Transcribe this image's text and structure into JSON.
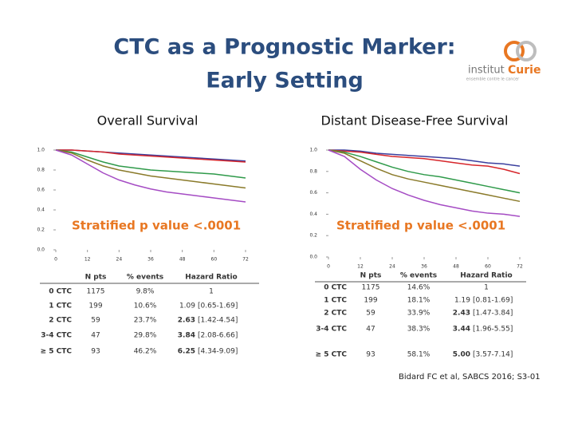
{
  "title": [
    "CTC as a Prognostic Marker:",
    "Early Setting"
  ],
  "logo": {
    "prefix": "institut",
    "name": "Curie",
    "tagline": "ensemble contre le cancer"
  },
  "chart_data": [
    {
      "type": "line",
      "title": "Overall Survival",
      "annotation": "Stratified p value <.0001",
      "x": [
        0,
        6,
        12,
        18,
        24,
        30,
        36,
        42,
        48,
        54,
        60,
        66,
        72
      ],
      "xlim": [
        0,
        72
      ],
      "xticks": [
        0,
        12,
        24,
        36,
        48,
        60,
        72
      ],
      "ylim": [
        0,
        1
      ],
      "yticks": [
        {
          "value": 0,
          "label": "0.0"
        },
        {
          "value": 0.2,
          "label": "0.2"
        },
        {
          "value": 0.4,
          "label": "0.4"
        },
        {
          "value": 0.6,
          "label": "0.6"
        },
        {
          "value": 0.8,
          "label": "0.8"
        },
        {
          "value": 1,
          "label": "1.0"
        }
      ],
      "series": [
        {
          "color": "#3b3f9e",
          "values": [
            1,
            1,
            0.99,
            0.98,
            0.97,
            0.96,
            0.95,
            0.94,
            0.93,
            0.92,
            0.91,
            0.9,
            0.89
          ]
        },
        {
          "color": "#d6262b",
          "values": [
            1,
            1,
            0.99,
            0.98,
            0.96,
            0.95,
            0.94,
            0.93,
            0.92,
            0.91,
            0.9,
            0.89,
            0.88
          ]
        },
        {
          "color": "#2f9a4a",
          "values": [
            1,
            0.98,
            0.93,
            0.88,
            0.84,
            0.82,
            0.8,
            0.79,
            0.78,
            0.77,
            0.76,
            0.74,
            0.72
          ]
        },
        {
          "color": "#8a7a2a",
          "values": [
            1,
            0.97,
            0.9,
            0.84,
            0.8,
            0.77,
            0.74,
            0.72,
            0.7,
            0.68,
            0.66,
            0.64,
            0.62
          ]
        },
        {
          "color": "#a54cc4",
          "values": [
            1,
            0.95,
            0.86,
            0.77,
            0.7,
            0.65,
            0.61,
            0.58,
            0.56,
            0.54,
            0.52,
            0.5,
            0.48
          ]
        }
      ]
    },
    {
      "type": "line",
      "title": "Distant Disease-Free Survival",
      "annotation": "Stratified p value <.0001",
      "x": [
        0,
        6,
        12,
        18,
        24,
        30,
        36,
        42,
        48,
        54,
        60,
        66,
        72
      ],
      "xlim": [
        0,
        72
      ],
      "xticks": [
        0,
        12,
        24,
        36,
        48,
        60,
        72
      ],
      "ylim": [
        0,
        1
      ],
      "yticks": [
        {
          "value": 0,
          "label": "0.0"
        },
        {
          "value": 0.2,
          "label": "0.2"
        },
        {
          "value": 0.4,
          "label": "0.4"
        },
        {
          "value": 0.6,
          "label": "0.6"
        },
        {
          "value": 0.8,
          "label": "0.8"
        },
        {
          "value": 1,
          "label": "1.0"
        }
      ],
      "series": [
        {
          "color": "#3b3f9e",
          "values": [
            1,
            1,
            0.99,
            0.97,
            0.96,
            0.95,
            0.94,
            0.93,
            0.92,
            0.9,
            0.88,
            0.87,
            0.85
          ]
        },
        {
          "color": "#d6262b",
          "values": [
            1,
            0.99,
            0.98,
            0.96,
            0.94,
            0.93,
            0.92,
            0.9,
            0.88,
            0.86,
            0.85,
            0.82,
            0.78
          ]
        },
        {
          "color": "#2f9a4a",
          "values": [
            1,
            0.98,
            0.94,
            0.89,
            0.84,
            0.8,
            0.77,
            0.75,
            0.72,
            0.69,
            0.66,
            0.63,
            0.6
          ]
        },
        {
          "color": "#8a7a2a",
          "values": [
            1,
            0.97,
            0.9,
            0.83,
            0.77,
            0.73,
            0.7,
            0.67,
            0.64,
            0.61,
            0.58,
            0.55,
            0.52
          ]
        },
        {
          "color": "#a54cc4",
          "values": [
            1,
            0.94,
            0.82,
            0.72,
            0.64,
            0.58,
            0.53,
            0.49,
            0.46,
            0.43,
            0.41,
            0.4,
            0.38
          ]
        }
      ]
    }
  ],
  "tables": [
    {
      "header": [
        "N pts",
        "% events",
        "Hazard Ratio"
      ],
      "rows": [
        {
          "label": "0 CTC",
          "n": "1175",
          "events": "9.8%",
          "hr": "1"
        },
        {
          "label": "1 CTC",
          "n": "199",
          "events": "10.6%",
          "hr": "1.09",
          "ci": "[0.65-1.69]"
        },
        {
          "label": "2 CTC",
          "n": "59",
          "events": "23.7%",
          "hr": "2.63",
          "ci": "[1.42-4.54]"
        },
        {
          "label": "3-4 CTC",
          "n": "47",
          "events": "29.8%",
          "hr": "3.84",
          "ci": "[2.08-6.66]"
        },
        {
          "label": "≥ 5 CTC",
          "n": "93",
          "events": "46.2%",
          "hr": "6.25",
          "ci": "[4.34-9.09]"
        }
      ]
    },
    {
      "header": [
        "N pts",
        "% events",
        "Hazard Ratio"
      ],
      "rows": [
        {
          "label": "0 CTC",
          "n": "1175",
          "events": "14.6%",
          "hr": "1"
        },
        {
          "label": "1 CTC",
          "n": "199",
          "events": "18.1%",
          "hr": "1.19",
          "ci": "[0.81-1.69]"
        },
        {
          "label": "2 CTC",
          "n": "59",
          "events": "33.9%",
          "hr": "2.43",
          "ci": "[1.47-3.84]"
        },
        {
          "label": "3-4 CTC",
          "n": "47",
          "events": "38.3%",
          "hr": "3.44",
          "ci": "[1.96-5.55]"
        },
        {
          "label": "≥ 5 CTC",
          "n": "93",
          "events": "58.1%",
          "hr": "5.00",
          "ci": "[3.57-7.14]"
        }
      ]
    }
  ],
  "citation": "Bidard FC et al, SABCS 2016; S3-01"
}
